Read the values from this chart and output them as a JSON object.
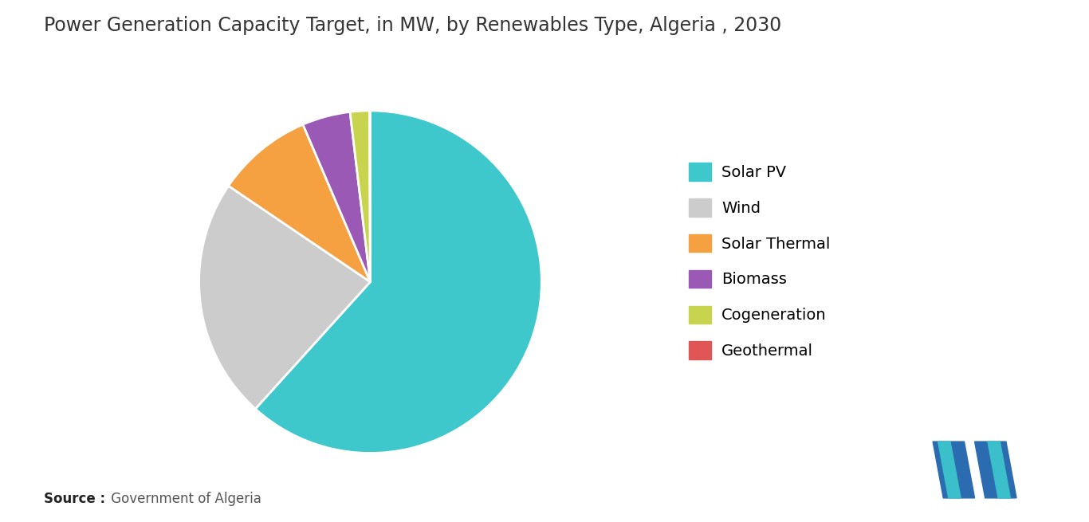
{
  "title": "Power Generation Capacity Target, in MW, by Renewables Type, Algeria , 2030",
  "title_fontsize": 17,
  "labels": [
    "Solar PV",
    "Wind",
    "Solar Thermal",
    "Biomass",
    "Cogeneration",
    "Geothermal"
  ],
  "values": [
    13575,
    5010,
    2000,
    1000,
    400,
    15
  ],
  "colors": [
    "#3EC8CC",
    "#CCCCCC",
    "#F5A041",
    "#9B59B6",
    "#C8D44E",
    "#E05555"
  ],
  "legend_fontsize": 14,
  "background_color": "#FFFFFF",
  "startangle": 90,
  "source_bold": "Source :",
  "source_rest": " Government of Algeria",
  "source_fontsize": 12
}
